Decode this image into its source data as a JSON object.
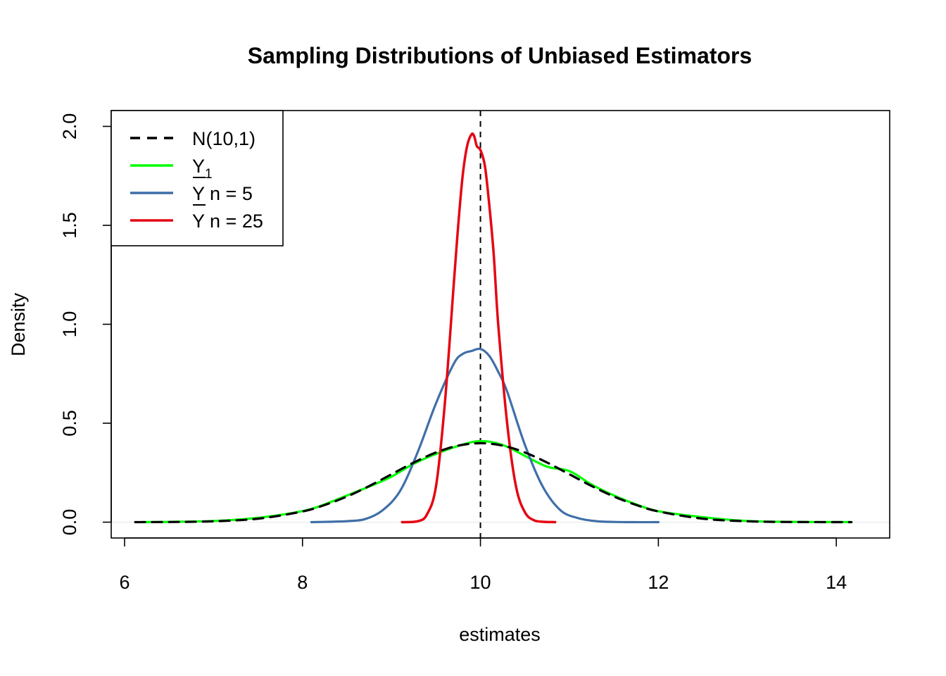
{
  "chart_data": {
    "type": "line",
    "title": "Sampling Distributions of Unbiased Estimators",
    "xlabel": "estimates",
    "ylabel": "Density",
    "xlim": [
      5.85,
      14.6
    ],
    "ylim": [
      -0.08,
      2.08
    ],
    "x_ticks": [
      6,
      8,
      10,
      12,
      14
    ],
    "x_tick_labels": [
      "6",
      "8",
      "10",
      "12",
      "14"
    ],
    "y_ticks": [
      0.0,
      0.5,
      1.0,
      1.5,
      2.0
    ],
    "y_tick_labels": [
      "0.0",
      "0.5",
      "1.0",
      "1.5",
      "2.0"
    ],
    "grid": false,
    "legend_position": "top-left",
    "reference_line": {
      "x": 10,
      "style": "dashed",
      "color": "#000000"
    },
    "zero_line": {
      "y": 0,
      "color": "#e6e6e6"
    },
    "series": [
      {
        "name": "N(10,1)",
        "legend_main": "N(10,1)",
        "legend_sub": "",
        "legend_bar": false,
        "color": "#000000",
        "dashed": true,
        "width": 3.2,
        "x": [
          6.12,
          6.5,
          7.0,
          7.5,
          8.0,
          8.25,
          8.5,
          8.75,
          9.0,
          9.25,
          9.5,
          9.75,
          10.0,
          10.25,
          10.5,
          10.75,
          11.0,
          11.25,
          11.5,
          11.75,
          12.0,
          12.5,
          13.0,
          13.5,
          14.17
        ],
        "y": [
          0.0002,
          0.0009,
          0.0044,
          0.0175,
          0.054,
          0.087,
          0.1295,
          0.1826,
          0.242,
          0.3011,
          0.3521,
          0.3867,
          0.3989,
          0.3867,
          0.3521,
          0.3011,
          0.242,
          0.1826,
          0.1295,
          0.087,
          0.054,
          0.0175,
          0.0044,
          0.0009,
          0.0001
        ]
      },
      {
        "name": "Y1",
        "legend_main": "Y",
        "legend_sub": "1",
        "legend_bar": false,
        "color": "#00ff00",
        "dashed": false,
        "width": 3.2,
        "x": [
          6.2,
          6.5,
          7.0,
          7.5,
          8.0,
          8.25,
          8.5,
          8.75,
          9.0,
          9.25,
          9.5,
          9.75,
          10.0,
          10.25,
          10.5,
          10.75,
          11.0,
          11.25,
          11.5,
          11.75,
          12.0,
          12.5,
          13.0,
          13.5,
          14.15
        ],
        "y": [
          0.0005,
          0.0015,
          0.006,
          0.022,
          0.056,
          0.09,
          0.135,
          0.18,
          0.23,
          0.295,
          0.345,
          0.385,
          0.41,
          0.39,
          0.335,
          0.28,
          0.258,
          0.19,
          0.135,
          0.09,
          0.055,
          0.025,
          0.006,
          0.0015,
          0.0005
        ]
      },
      {
        "name": "Ȳ n = 5",
        "legend_main": "Y",
        "legend_sub": "",
        "legend_bar": true,
        "legend_rest": " n = 5",
        "color": "#3f6fa8",
        "dashed": false,
        "width": 3.2,
        "x": [
          8.1,
          8.3,
          8.5,
          8.7,
          8.9,
          9.1,
          9.3,
          9.5,
          9.7,
          9.8,
          9.9,
          10.0,
          10.1,
          10.2,
          10.3,
          10.5,
          10.7,
          10.9,
          11.1,
          11.3,
          11.5,
          11.7,
          12.0
        ],
        "y": [
          0.0,
          0.002,
          0.005,
          0.015,
          0.06,
          0.16,
          0.36,
          0.6,
          0.8,
          0.85,
          0.865,
          0.875,
          0.84,
          0.76,
          0.66,
          0.39,
          0.18,
          0.06,
          0.02,
          0.005,
          0.001,
          0.0,
          0.0
        ]
      },
      {
        "name": "Ȳ n = 25",
        "legend_main": "Y",
        "legend_sub": "",
        "legend_bar": true,
        "legend_rest": " n = 25",
        "color": "#e40613",
        "dashed": false,
        "width": 3.5,
        "x": [
          9.12,
          9.3,
          9.4,
          9.5,
          9.6,
          9.7,
          9.75,
          9.8,
          9.85,
          9.9,
          9.93,
          9.96,
          10.0,
          10.05,
          10.1,
          10.15,
          10.2,
          10.3,
          10.4,
          10.5,
          10.6,
          10.7,
          10.84
        ],
        "y": [
          0.0,
          0.005,
          0.04,
          0.18,
          0.6,
          1.2,
          1.5,
          1.75,
          1.9,
          1.96,
          1.95,
          1.9,
          1.88,
          1.8,
          1.6,
          1.35,
          1.0,
          0.5,
          0.18,
          0.05,
          0.01,
          0.002,
          0.0
        ]
      }
    ]
  }
}
